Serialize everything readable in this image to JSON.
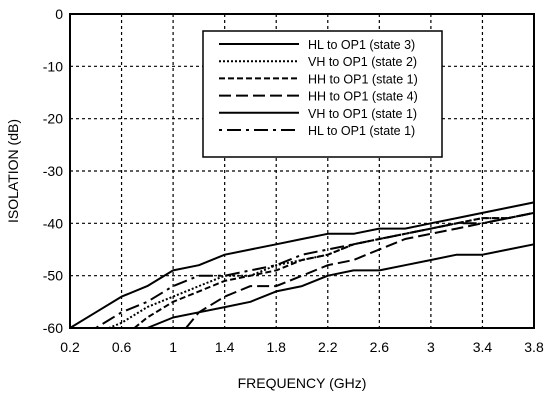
{
  "chart_data": {
    "type": "line",
    "xlabel": "FREQUENCY (GHz)",
    "ylabel": "ISOLATION (dB)",
    "xlim": [
      0.2,
      3.8
    ],
    "ylim": [
      -60,
      0
    ],
    "x_ticks": [
      "0.2",
      "0.6",
      "1",
      "1.4",
      "1.8",
      "2.2",
      "2.6",
      "3",
      "3.4",
      "3.8"
    ],
    "y_ticks": [
      "0",
      "-10",
      "-20",
      "-30",
      "-40",
      "-50",
      "-60"
    ],
    "grid": true,
    "legend_position": "top-right",
    "series": [
      {
        "name": "HL to OP1 (state 3)",
        "dash": "",
        "x": [
          0.2,
          0.4,
          0.6,
          0.8,
          1.0,
          1.2,
          1.4,
          1.6,
          1.8,
          2.0,
          2.2,
          2.4,
          2.6,
          2.8,
          3.0,
          3.2,
          3.4,
          3.6,
          3.8
        ],
        "y": [
          -60,
          -57,
          -54,
          -52,
          -49,
          -48,
          -46,
          -45,
          -44,
          -43,
          -42,
          -42,
          -41,
          -41,
          -40,
          -39,
          -38,
          -37,
          -36
        ]
      },
      {
        "name": "VH to OP1 (state 2)",
        "dash": "2,2",
        "x": [
          0.5,
          0.6,
          0.8,
          1.0,
          1.2,
          1.4,
          1.6,
          1.8,
          2.0,
          2.2,
          2.4,
          2.6,
          2.8,
          3.0,
          3.2,
          3.4,
          3.6,
          3.8
        ],
        "y": [
          -60,
          -59,
          -56,
          -54,
          -52,
          -50,
          -50,
          -48,
          -47,
          -46,
          -44,
          -43,
          -42,
          -41,
          -40,
          -39,
          -39,
          -38
        ]
      },
      {
        "name": "HH to OP1 (state 1)",
        "dash": "6,3",
        "x": [
          0.7,
          0.8,
          1.0,
          1.2,
          1.4,
          1.6,
          1.8,
          2.0,
          2.2,
          2.4,
          2.6,
          2.8,
          3.0,
          3.2,
          3.4,
          3.6,
          3.8
        ],
        "y": [
          -60,
          -58,
          -55,
          -53,
          -51,
          -50,
          -49,
          -47,
          -46,
          -44,
          -43,
          -42,
          -41,
          -40,
          -39,
          -39,
          -38
        ]
      },
      {
        "name": "HH to OP1 (state 4)",
        "dash": "12,5",
        "x": [
          1.1,
          1.2,
          1.4,
          1.6,
          1.8,
          2.0,
          2.2,
          2.4,
          2.6,
          2.8,
          3.0,
          3.2,
          3.4,
          3.6,
          3.8
        ],
        "y": [
          -60,
          -57,
          -54,
          -52,
          -52,
          -50,
          -48,
          -47,
          -45,
          -43,
          -42,
          -41,
          -40,
          -39,
          -38
        ]
      },
      {
        "name": "VH to OP1 (state 1)",
        "dash": "",
        "x": [
          0.8,
          1.0,
          1.2,
          1.4,
          1.6,
          1.8,
          2.0,
          2.2,
          2.4,
          2.6,
          2.8,
          3.0,
          3.2,
          3.4,
          3.6,
          3.8
        ],
        "y": [
          -60,
          -58,
          -57,
          -56,
          -55,
          -53,
          -52,
          -50,
          -49,
          -49,
          -48,
          -47,
          -46,
          -46,
          -45,
          -44
        ]
      },
      {
        "name": "HL to OP1 (state 1)",
        "dash": "3,5,14,5",
        "x": [
          0.4,
          0.6,
          0.8,
          1.0,
          1.2,
          1.4,
          1.6,
          1.8,
          2.0,
          2.2,
          2.4,
          2.6,
          2.8,
          3.0,
          3.2,
          3.4,
          3.6,
          3.8
        ],
        "y": [
          -60,
          -57,
          -55,
          -52,
          -50,
          -50,
          -49,
          -48,
          -46,
          -45,
          -44,
          -43,
          -42,
          -41,
          -40,
          -40,
          -39,
          -38
        ]
      }
    ]
  }
}
